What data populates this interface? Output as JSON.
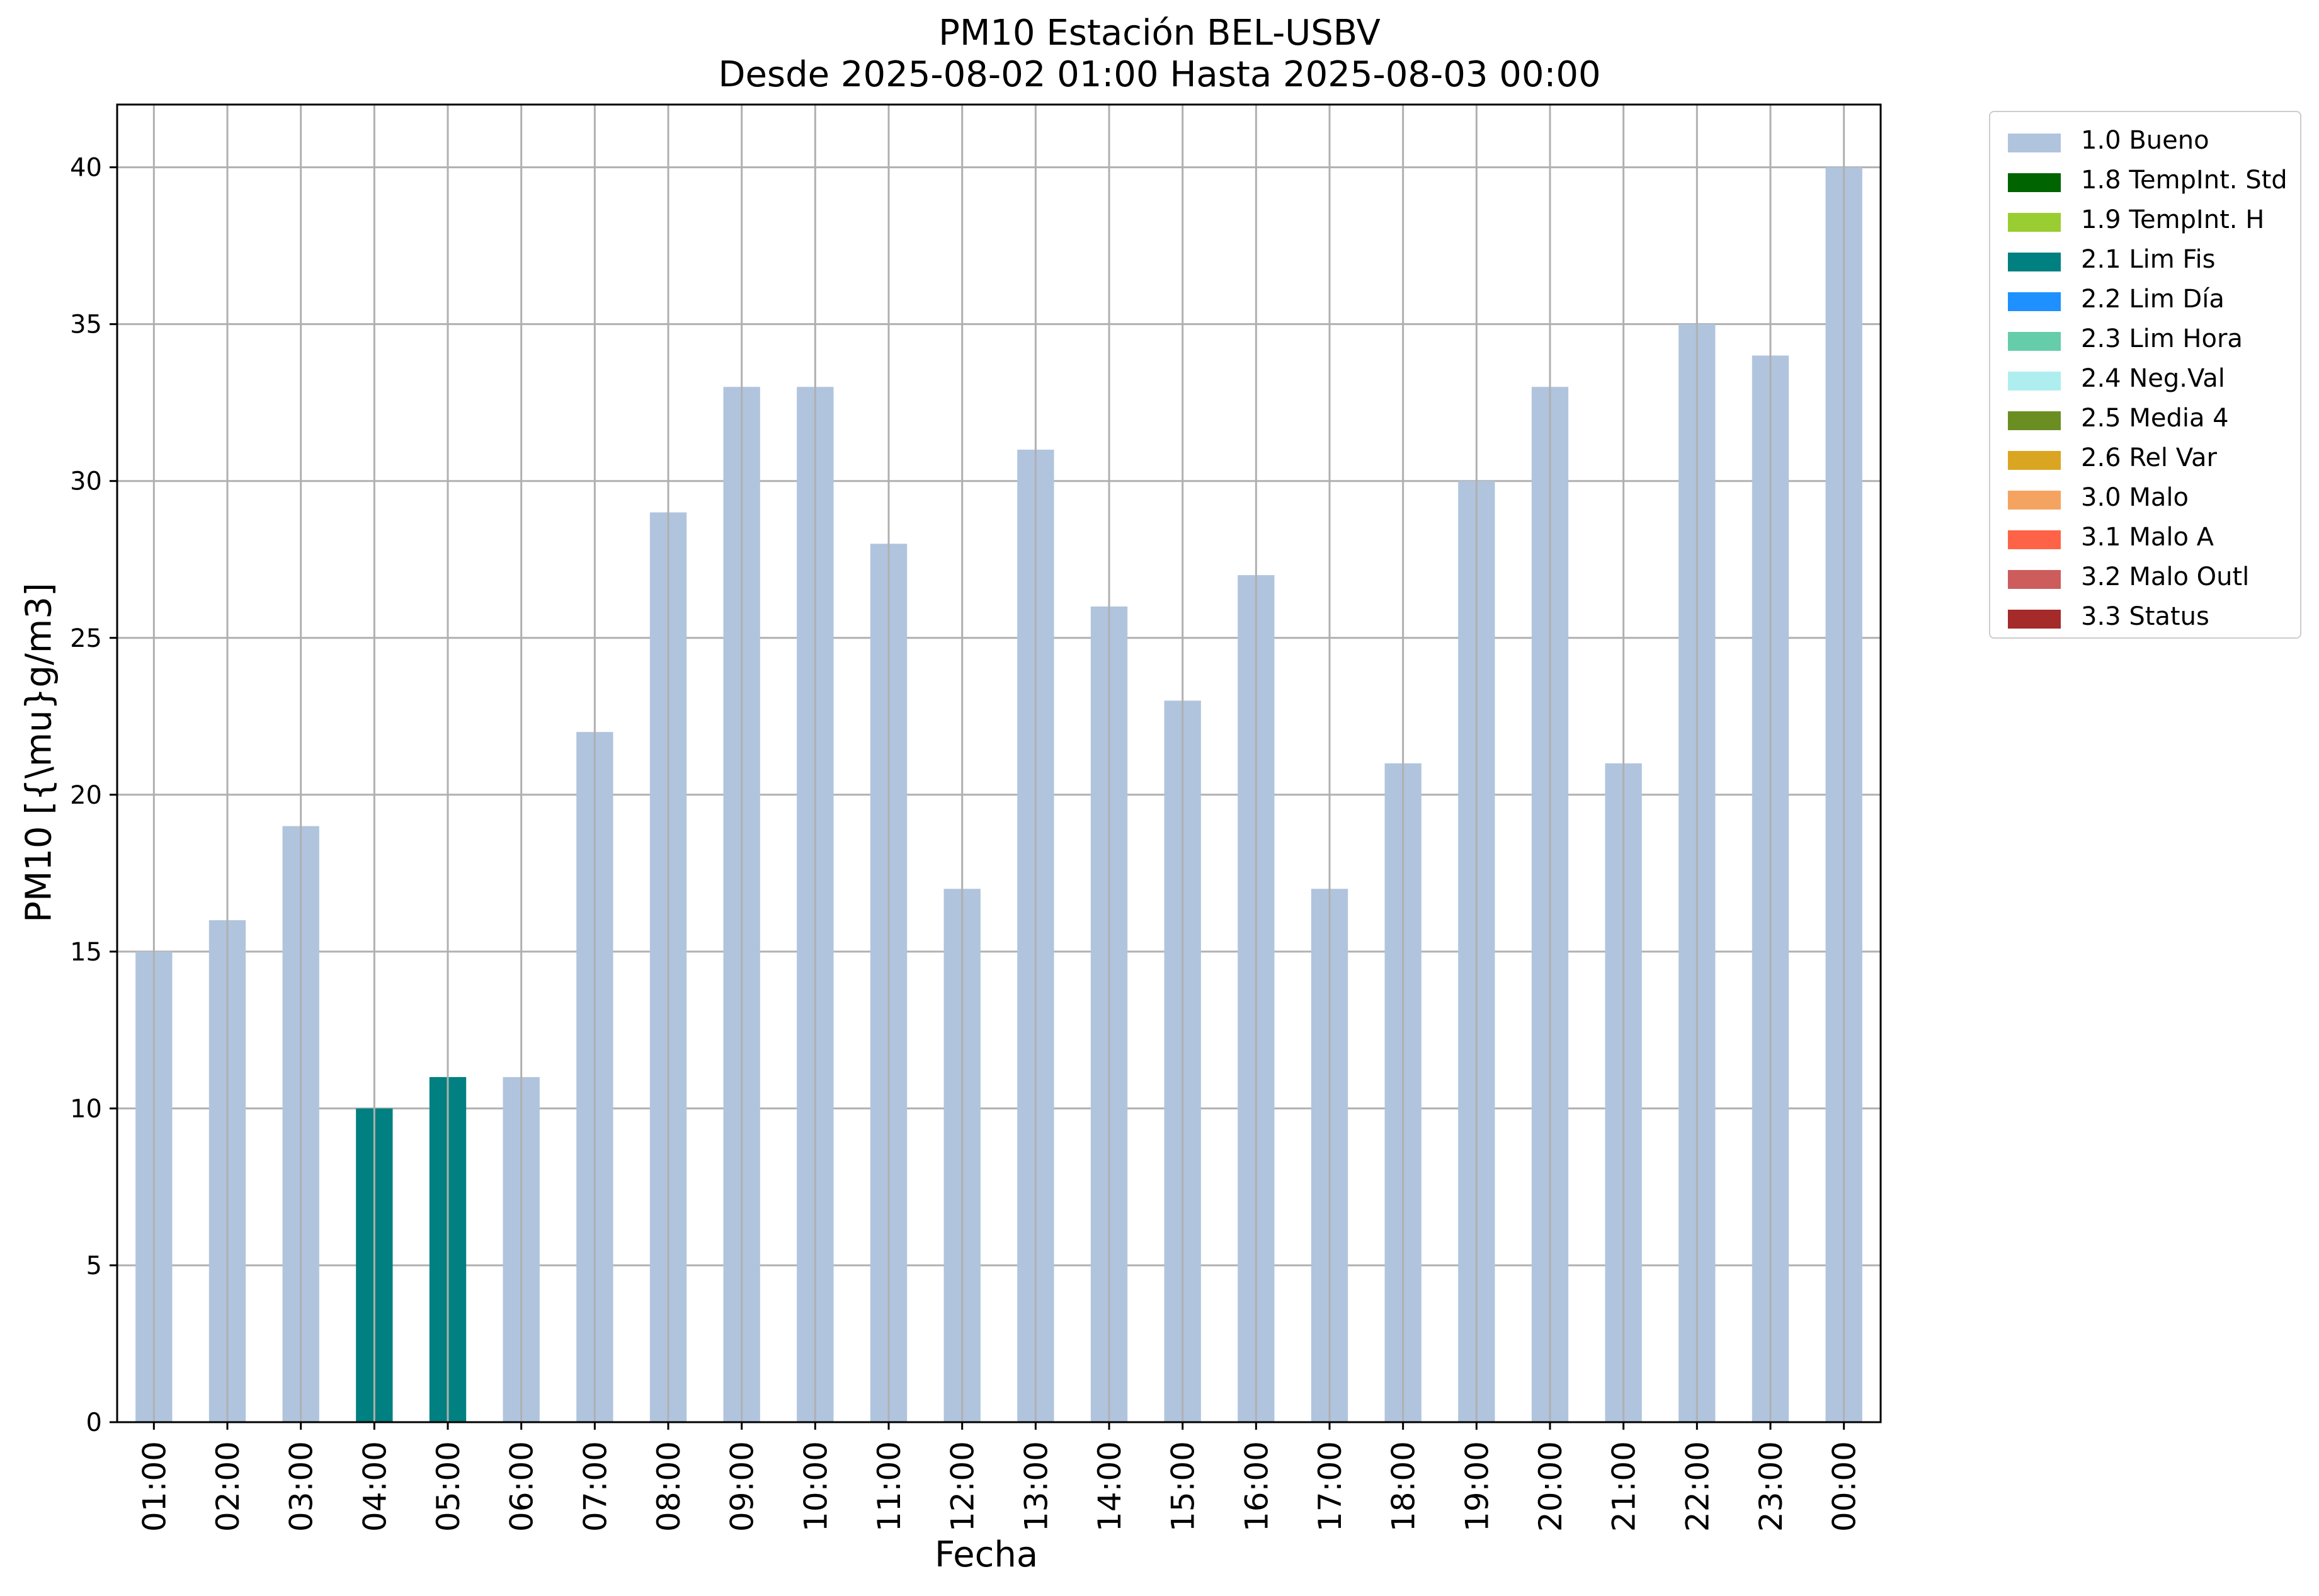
{
  "chart_data": {
    "type": "bar",
    "title": "PM10 Estación BEL-USBV",
    "subtitle": "Desde 2025-08-02 01:00 Hasta 2025-08-03 00:00",
    "xlabel": "Fecha",
    "ylabel": "PM10 [{\\mu}g/m3]",
    "ylim": [
      0,
      42
    ],
    "yticks": [
      0,
      5,
      10,
      15,
      20,
      25,
      30,
      35,
      40
    ],
    "grid": true,
    "legend_position": "outside-top-right",
    "categories": [
      "01:00",
      "02:00",
      "03:00",
      "04:00",
      "05:00",
      "06:00",
      "07:00",
      "08:00",
      "09:00",
      "10:00",
      "11:00",
      "12:00",
      "13:00",
      "14:00",
      "15:00",
      "16:00",
      "17:00",
      "18:00",
      "19:00",
      "20:00",
      "21:00",
      "22:00",
      "23:00",
      "00:00"
    ],
    "values": [
      15,
      16,
      19,
      10,
      11,
      11,
      22,
      29,
      33,
      33,
      28,
      17,
      31,
      26,
      23,
      27,
      17,
      21,
      30,
      33,
      21,
      35,
      34,
      40
    ],
    "flags": [
      "1.0 Bueno",
      "1.0 Bueno",
      "1.0 Bueno",
      "2.1 Lim Fis",
      "2.1 Lim Fis",
      "1.0 Bueno",
      "1.0 Bueno",
      "1.0 Bueno",
      "1.0 Bueno",
      "1.0 Bueno",
      "1.0 Bueno",
      "1.0 Bueno",
      "1.0 Bueno",
      "1.0 Bueno",
      "1.0 Bueno",
      "1.0 Bueno",
      "1.0 Bueno",
      "1.0 Bueno",
      "1.0 Bueno",
      "1.0 Bueno",
      "1.0 Bueno",
      "1.0 Bueno",
      "1.0 Bueno",
      "1.0 Bueno"
    ],
    "legend": [
      {
        "name": "1.0 Bueno",
        "color": "#b0c4de"
      },
      {
        "name": "1.8 TempInt. Std",
        "color": "#006400"
      },
      {
        "name": "1.9 TempInt. H",
        "color": "#9acd32"
      },
      {
        "name": "2.1 Lim Fis",
        "color": "#008080"
      },
      {
        "name": "2.2 Lim Día",
        "color": "#1e90ff"
      },
      {
        "name": "2.3 Lim Hora",
        "color": "#66cdaa"
      },
      {
        "name": "2.4 Neg.Val",
        "color": "#afeeee"
      },
      {
        "name": "2.5 Media 4",
        "color": "#6b8e23"
      },
      {
        "name": "2.6 Rel Var",
        "color": "#daa520"
      },
      {
        "name": "3.0 Malo",
        "color": "#f4a460"
      },
      {
        "name": "3.1 Malo A",
        "color": "#ff6347"
      },
      {
        "name": "3.2 Malo Outl",
        "color": "#cd5c5c"
      },
      {
        "name": "3.3 Status",
        "color": "#a52a2a"
      }
    ]
  }
}
